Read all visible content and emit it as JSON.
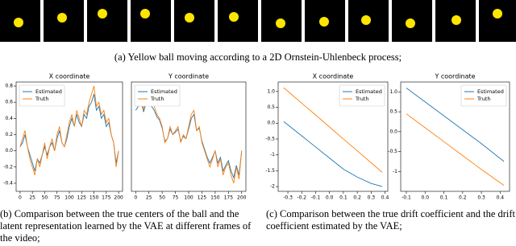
{
  "captions": {
    "a": "(a) Yellow ball moving according to a 2D Ornstein-Uhlenbeck process;",
    "b": "(b) Comparison between the true centers of the ball and the latent representation learned by the VAE at different frames of the video;",
    "c": "(c) Comparison between the true drift coefficient and the drift coefficient estimated by the VAE;"
  },
  "chart_data": [
    {
      "type": "line",
      "title": "X coordinate",
      "legend": "upper left",
      "x": [
        0,
        5,
        10,
        15,
        20,
        25,
        30,
        35,
        40,
        45,
        50,
        55,
        60,
        65,
        70,
        75,
        80,
        85,
        90,
        95,
        100,
        105,
        110,
        115,
        120,
        125,
        130,
        135,
        140,
        145,
        150,
        155,
        160,
        165,
        170,
        175,
        180,
        185,
        190,
        195,
        200
      ],
      "xlim": [
        -8,
        208
      ],
      "xticks": [
        0,
        25,
        50,
        75,
        100,
        125,
        150,
        175,
        200
      ],
      "ylim": [
        -0.5,
        0.85
      ],
      "yticks": [
        -0.4,
        -0.2,
        {
          "value": 0,
          "label": "0.0"
        },
        0.2,
        0.4,
        0.6,
        0.8
      ],
      "series": [
        {
          "name": "Estimated",
          "color": "#1f77b4",
          "values": [
            0.05,
            0.1,
            0.2,
            0.05,
            -0.05,
            -0.15,
            -0.25,
            -0.1,
            -0.15,
            -0.05,
            0.05,
            -0.05,
            0.05,
            0.1,
            0.0,
            0.15,
            0.25,
            0.1,
            0.05,
            0.15,
            0.3,
            0.4,
            0.3,
            0.45,
            0.35,
            0.3,
            0.45,
            0.4,
            0.55,
            0.6,
            0.7,
            0.5,
            0.55,
            0.4,
            0.45,
            0.3,
            0.35,
            0.2,
            0.1,
            -0.15,
            0.0
          ]
        },
        {
          "name": "Truth",
          "color": "#ff7f0e",
          "values": [
            0.05,
            0.15,
            0.25,
            0.05,
            -0.1,
            -0.2,
            -0.3,
            -0.1,
            -0.2,
            -0.05,
            0.1,
            -0.1,
            0.05,
            0.15,
            0.0,
            0.2,
            0.3,
            0.1,
            0.05,
            0.2,
            0.35,
            0.45,
            0.3,
            0.5,
            0.4,
            0.3,
            0.5,
            0.45,
            0.6,
            0.7,
            0.8,
            0.55,
            0.6,
            0.45,
            0.5,
            0.35,
            0.4,
            0.2,
            0.1,
            -0.2,
            0.0
          ]
        }
      ]
    },
    {
      "type": "line",
      "title": "Y coordinate",
      "legend": "upper left",
      "x": [
        0,
        5,
        10,
        15,
        20,
        25,
        30,
        35,
        40,
        45,
        50,
        55,
        60,
        65,
        70,
        75,
        80,
        85,
        90,
        95,
        100,
        105,
        110,
        115,
        120,
        125,
        130,
        135,
        140,
        145,
        150,
        155,
        160,
        165,
        170,
        175,
        180,
        185,
        190,
        195,
        200
      ],
      "xlim": [
        -8,
        208
      ],
      "xticks": [
        0,
        25,
        50,
        75,
        100,
        125,
        150,
        175,
        200
      ],
      "ylim": [
        -0.5,
        0.85
      ],
      "series": [
        {
          "name": "Estimated",
          "color": "#1f77b4",
          "values": [
            0.5,
            0.55,
            0.62,
            0.48,
            0.6,
            0.68,
            0.55,
            0.5,
            0.42,
            0.38,
            0.28,
            0.12,
            0.15,
            0.27,
            0.2,
            0.23,
            0.27,
            0.12,
            0.18,
            0.15,
            0.27,
            0.4,
            0.45,
            0.25,
            0.28,
            0.12,
            0.02,
            -0.08,
            -0.15,
            -0.08,
            0.0,
            -0.15,
            -0.08,
            -0.25,
            -0.18,
            -0.12,
            -0.25,
            -0.33,
            -0.18,
            -0.3,
            0.0
          ]
        },
        {
          "name": "Truth",
          "color": "#ff7f0e",
          "values": [
            0.55,
            0.6,
            0.7,
            0.5,
            0.65,
            0.75,
            0.6,
            0.55,
            0.45,
            0.4,
            0.3,
            0.1,
            0.15,
            0.3,
            0.2,
            0.25,
            0.3,
            0.1,
            0.2,
            0.15,
            0.3,
            0.45,
            0.5,
            0.25,
            0.3,
            0.1,
            0.0,
            -0.1,
            -0.2,
            -0.1,
            0.0,
            -0.2,
            -0.1,
            -0.3,
            -0.2,
            -0.15,
            -0.3,
            -0.4,
            -0.2,
            -0.35,
            0.0
          ]
        }
      ]
    },
    {
      "type": "line",
      "title": "X coordinate",
      "legend": "upper right",
      "x": [
        -0.33,
        -0.2,
        -0.1,
        0,
        0.1,
        0.2,
        0.3,
        0.38
      ],
      "xlim": [
        -0.37,
        0.42
      ],
      "xticks": [
        -0.3,
        -0.2,
        -0.1,
        {
          "value": 0,
          "label": "0.0"
        },
        0.1,
        0.2,
        0.3,
        0.4
      ],
      "ylim": [
        -2.15,
        1.3
      ],
      "yticks": [
        -2,
        -1.5,
        -1,
        -0.5,
        {
          "value": 0,
          "label": "0.0"
        },
        0.5,
        {
          "value": 1,
          "label": "1.0"
        }
      ],
      "series": [
        {
          "name": "Estimated",
          "color": "#1f77b4",
          "values": [
            0.05,
            -0.4,
            -0.75,
            -1.1,
            -1.45,
            -1.7,
            -1.9,
            -2.0
          ]
        },
        {
          "name": "Truth",
          "color": "#ff7f0e",
          "values": [
            1.12,
            0.63,
            0.26,
            -0.12,
            -0.5,
            -0.87,
            -1.25,
            -1.55
          ]
        }
      ]
    },
    {
      "type": "line",
      "title": "Y coordinate",
      "legend": "upper right",
      "x": [
        -0.1,
        0,
        0.1,
        0.2,
        0.3,
        0.42
      ],
      "xlim": [
        -0.13,
        0.45
      ],
      "xticks": [
        -0.1,
        {
          "value": 0,
          "label": "0.0"
        },
        0.1,
        0.2,
        0.3,
        0.4
      ],
      "ylim": [
        -1.5,
        1.25
      ],
      "yticks": [
        -1,
        -0.5,
        {
          "value": 0,
          "label": "0.0"
        },
        0.5,
        {
          "value": 1,
          "label": "1.0"
        }
      ],
      "series": [
        {
          "name": "Estimated",
          "color": "#1f77b4",
          "values": [
            1.1,
            0.75,
            0.4,
            0.05,
            -0.3,
            -0.75
          ]
        },
        {
          "name": "Truth",
          "color": "#ff7f0e",
          "values": [
            0.45,
            0.1,
            -0.25,
            -0.6,
            -0.95,
            -1.35
          ]
        }
      ]
    }
  ]
}
